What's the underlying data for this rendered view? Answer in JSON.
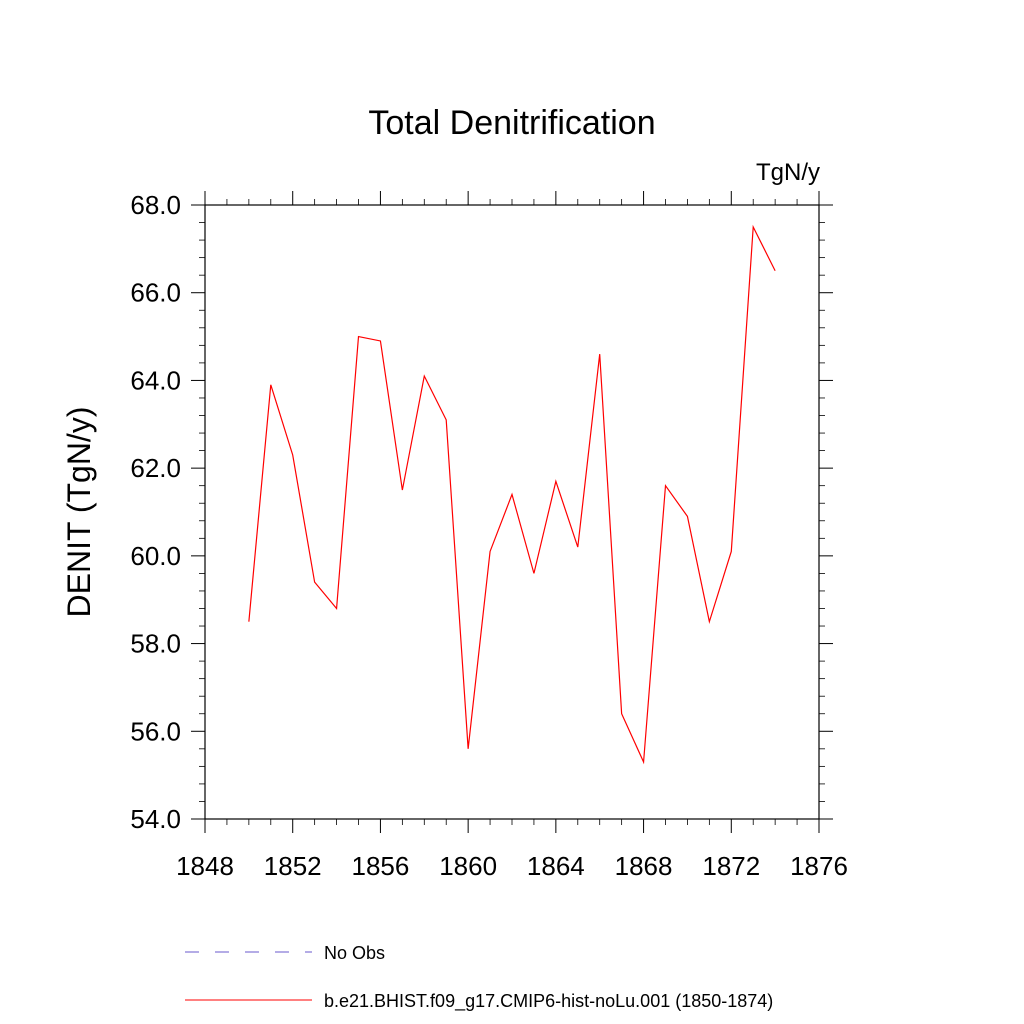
{
  "chart_data": {
    "type": "line",
    "title": "Total Denitrification",
    "units_label": "TgN/y",
    "xlabel": "",
    "ylabel": "DENIT  (TgN/y)",
    "xlim": [
      1848,
      1876
    ],
    "ylim": [
      54.0,
      68.0
    ],
    "x_ticks": [
      "1848",
      "1852",
      "1856",
      "1860",
      "1864",
      "1868",
      "1872",
      "1876"
    ],
    "y_ticks": [
      "54.0",
      "56.0",
      "58.0",
      "60.0",
      "62.0",
      "64.0",
      "66.0",
      "68.0"
    ],
    "x_tick_values": [
      1848,
      1852,
      1856,
      1860,
      1864,
      1868,
      1872,
      1876
    ],
    "y_tick_values": [
      54,
      56,
      58,
      60,
      62,
      64,
      66,
      68
    ],
    "grid": false,
    "legend_position": "bottom",
    "series": [
      {
        "name": "No Obs",
        "color": "#6a5acd",
        "style": "dashed",
        "x": [],
        "y": []
      },
      {
        "name": "b.e21.BHIST.f09_g17.CMIP6-hist-noLu.001 (1850-1874)",
        "color": "#ff0000",
        "style": "solid",
        "x": [
          1850,
          1851,
          1852,
          1853,
          1854,
          1855,
          1856,
          1857,
          1858,
          1859,
          1860,
          1861,
          1862,
          1863,
          1864,
          1865,
          1866,
          1867,
          1868,
          1869,
          1870,
          1871,
          1872,
          1873,
          1874
        ],
        "y": [
          58.5,
          63.9,
          62.3,
          59.4,
          58.8,
          65.0,
          64.9,
          61.5,
          64.1,
          63.1,
          55.6,
          60.1,
          61.4,
          59.6,
          61.7,
          60.2,
          64.6,
          56.4,
          55.3,
          61.6,
          60.9,
          58.5,
          60.1,
          67.5,
          66.5
        ]
      }
    ]
  }
}
